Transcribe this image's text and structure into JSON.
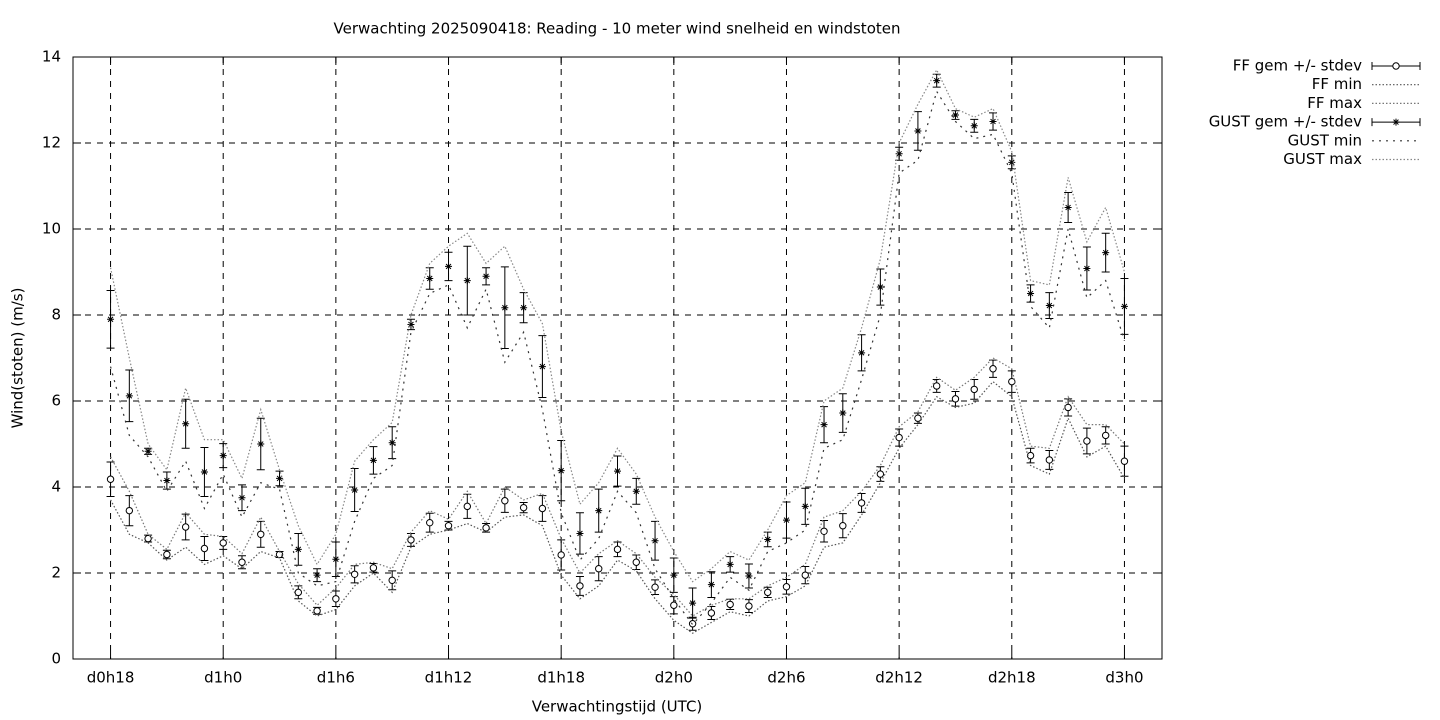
{
  "chart_data": {
    "type": "line",
    "title": "Verwachting 2025090418: Reading - 10 meter wind snelheid en windstoten",
    "x_label": "Verwachtingstijd (UTC)",
    "y_label": "Wind(stoten) (m/s)",
    "x": [
      18,
      19,
      20,
      21,
      22,
      23,
      24,
      25,
      26,
      27,
      28,
      29,
      30,
      31,
      32,
      33,
      34,
      35,
      36,
      37,
      38,
      39,
      40,
      41,
      42,
      43,
      44,
      45,
      46,
      47,
      48,
      49,
      50,
      51,
      52,
      53,
      54,
      55,
      56,
      57,
      58,
      59,
      60,
      61,
      62,
      63,
      64,
      65,
      66,
      67,
      68,
      69,
      70,
      71,
      72
    ],
    "xlim": [
      16,
      74
    ],
    "xticks": [
      {
        "value": 18,
        "label": "d0h18"
      },
      {
        "value": 24,
        "label": "d1h0"
      },
      {
        "value": 30,
        "label": "d1h6"
      },
      {
        "value": 36,
        "label": "d1h12"
      },
      {
        "value": 42,
        "label": "d1h18"
      },
      {
        "value": 48,
        "label": "d2h0"
      },
      {
        "value": 54,
        "label": "d2h6"
      },
      {
        "value": 60,
        "label": "d2h12"
      },
      {
        "value": 66,
        "label": "d2h18"
      },
      {
        "value": 72,
        "label": "d3h0"
      }
    ],
    "ylim": [
      0,
      14
    ],
    "yticks": [
      0,
      2,
      4,
      6,
      8,
      10,
      12,
      14
    ],
    "grid": true,
    "legend": "outside-right",
    "series": [
      {
        "name": "FF gem +/- stdev",
        "color": "#000000",
        "style": "errorbars",
        "marker": "circle",
        "values": [
          4.18,
          3.45,
          2.8,
          2.43,
          3.07,
          2.57,
          2.7,
          2.25,
          2.9,
          2.43,
          1.55,
          1.12,
          1.4,
          1.97,
          2.12,
          1.83,
          2.77,
          3.17,
          3.1,
          3.55,
          3.05,
          3.68,
          3.52,
          3.5,
          2.42,
          1.7,
          2.1,
          2.55,
          2.25,
          1.67,
          1.25,
          0.82,
          1.07,
          1.27,
          1.23,
          1.55,
          1.68,
          1.95,
          2.97,
          3.1,
          3.63,
          4.3,
          5.15,
          5.6,
          6.35,
          6.05,
          6.27,
          6.75,
          6.45,
          4.73,
          4.63,
          5.85,
          5.07,
          5.2,
          4.6
        ],
        "errors": [
          0.4,
          0.35,
          0.08,
          0.1,
          0.3,
          0.28,
          0.15,
          0.15,
          0.3,
          0.07,
          0.15,
          0.08,
          0.18,
          0.2,
          0.1,
          0.22,
          0.15,
          0.22,
          0.1,
          0.28,
          0.1,
          0.27,
          0.12,
          0.3,
          0.35,
          0.22,
          0.28,
          0.17,
          0.17,
          0.17,
          0.2,
          0.15,
          0.15,
          0.12,
          0.15,
          0.12,
          0.17,
          0.2,
          0.25,
          0.28,
          0.22,
          0.17,
          0.2,
          0.12,
          0.15,
          0.17,
          0.23,
          0.2,
          0.25,
          0.17,
          0.22,
          0.2,
          0.3,
          0.2,
          0.35
        ]
      },
      {
        "name": "FF min",
        "color": "#555555",
        "style": "dotted",
        "values": [
          3.7,
          2.9,
          2.7,
          2.3,
          2.6,
          2.2,
          2.4,
          2.1,
          2.5,
          2.35,
          1.35,
          1.0,
          1.15,
          1.7,
          2.0,
          1.55,
          2.6,
          2.9,
          3.0,
          3.15,
          2.95,
          3.3,
          3.35,
          3.1,
          1.95,
          1.4,
          1.7,
          2.3,
          2.05,
          1.4,
          0.9,
          0.6,
          0.85,
          1.1,
          1.0,
          1.35,
          1.45,
          1.7,
          2.6,
          2.7,
          3.35,
          4.1,
          4.9,
          5.45,
          6.1,
          5.85,
          5.95,
          6.45,
          6.1,
          4.5,
          4.3,
          5.6,
          4.7,
          4.95,
          4.2
        ]
      },
      {
        "name": "FF max",
        "color": "#777777",
        "style": "dotted",
        "values": [
          4.7,
          3.9,
          2.9,
          2.55,
          3.4,
          2.9,
          2.85,
          2.45,
          3.3,
          2.5,
          1.75,
          1.25,
          1.65,
          2.2,
          2.25,
          2.1,
          2.95,
          3.45,
          3.25,
          3.9,
          3.15,
          4.0,
          3.7,
          3.85,
          2.8,
          2.0,
          2.45,
          2.75,
          2.45,
          1.9,
          1.5,
          1.0,
          1.25,
          1.4,
          1.4,
          1.7,
          1.9,
          2.2,
          3.3,
          3.45,
          3.9,
          4.5,
          5.4,
          5.75,
          6.55,
          6.25,
          6.55,
          7.0,
          6.75,
          4.95,
          4.9,
          6.1,
          5.45,
          5.45,
          5.0
        ]
      },
      {
        "name": "GUST gem +/- stdev",
        "color": "#000000",
        "style": "errorbars",
        "marker": "star",
        "values": [
          7.9,
          6.12,
          4.83,
          4.15,
          5.47,
          4.35,
          4.73,
          3.75,
          5.0,
          4.2,
          2.55,
          1.95,
          2.32,
          3.93,
          4.62,
          5.03,
          7.78,
          8.85,
          9.13,
          8.8,
          8.9,
          8.17,
          8.17,
          6.8,
          4.38,
          2.92,
          3.45,
          4.37,
          3.9,
          2.75,
          1.95,
          1.3,
          1.73,
          2.2,
          1.93,
          2.78,
          3.23,
          3.55,
          5.45,
          5.72,
          7.12,
          8.65,
          11.75,
          12.28,
          13.45,
          12.65,
          12.4,
          12.5,
          11.55,
          8.5,
          8.22,
          10.5,
          9.08,
          9.45,
          8.2
        ],
        "errors": [
          0.67,
          0.6,
          0.07,
          0.2,
          0.57,
          0.57,
          0.28,
          0.3,
          0.6,
          0.17,
          0.37,
          0.15,
          0.4,
          0.5,
          0.32,
          0.37,
          0.12,
          0.25,
          0.33,
          0.8,
          0.2,
          0.95,
          0.35,
          0.72,
          0.7,
          0.48,
          0.5,
          0.35,
          0.3,
          0.45,
          0.4,
          0.35,
          0.3,
          0.18,
          0.28,
          0.17,
          0.42,
          0.42,
          0.42,
          0.45,
          0.42,
          0.42,
          0.15,
          0.45,
          0.15,
          0.1,
          0.15,
          0.2,
          0.15,
          0.2,
          0.3,
          0.35,
          0.5,
          0.45,
          0.65
        ]
      },
      {
        "name": "GUST min",
        "color": "#333333",
        "style": "sparse-dotted",
        "values": [
          6.8,
          5.2,
          4.7,
          3.9,
          4.6,
          3.5,
          4.3,
          3.3,
          4.1,
          3.95,
          2.0,
          1.7,
          1.8,
          3.2,
          4.2,
          4.5,
          7.6,
          8.5,
          8.7,
          7.7,
          8.6,
          6.9,
          7.6,
          5.8,
          3.4,
          2.3,
          2.8,
          3.9,
          3.4,
          2.1,
          1.4,
          0.8,
          1.3,
          1.9,
          1.6,
          2.5,
          2.7,
          3.0,
          4.9,
          5.1,
          6.5,
          8.0,
          11.3,
          11.6,
          13.2,
          12.5,
          12.1,
          12.2,
          11.3,
          8.2,
          7.7,
          10.0,
          8.4,
          8.8,
          7.4
        ]
      },
      {
        "name": "GUST max",
        "color": "#888888",
        "style": "dotted",
        "values": [
          9.1,
          7.0,
          5.0,
          4.4,
          6.3,
          5.1,
          5.1,
          4.2,
          5.8,
          4.4,
          3.1,
          2.2,
          2.9,
          4.6,
          5.1,
          5.5,
          8.0,
          9.2,
          9.6,
          9.9,
          9.2,
          9.6,
          8.6,
          7.8,
          5.3,
          3.6,
          4.1,
          4.9,
          4.3,
          3.3,
          2.5,
          1.8,
          2.1,
          2.5,
          2.3,
          3.0,
          3.8,
          4.1,
          6.0,
          6.3,
          7.7,
          9.3,
          12.0,
          12.9,
          13.7,
          12.8,
          12.6,
          12.8,
          11.8,
          8.8,
          8.7,
          11.2,
          9.7,
          10.5,
          9.0
        ]
      }
    ]
  }
}
